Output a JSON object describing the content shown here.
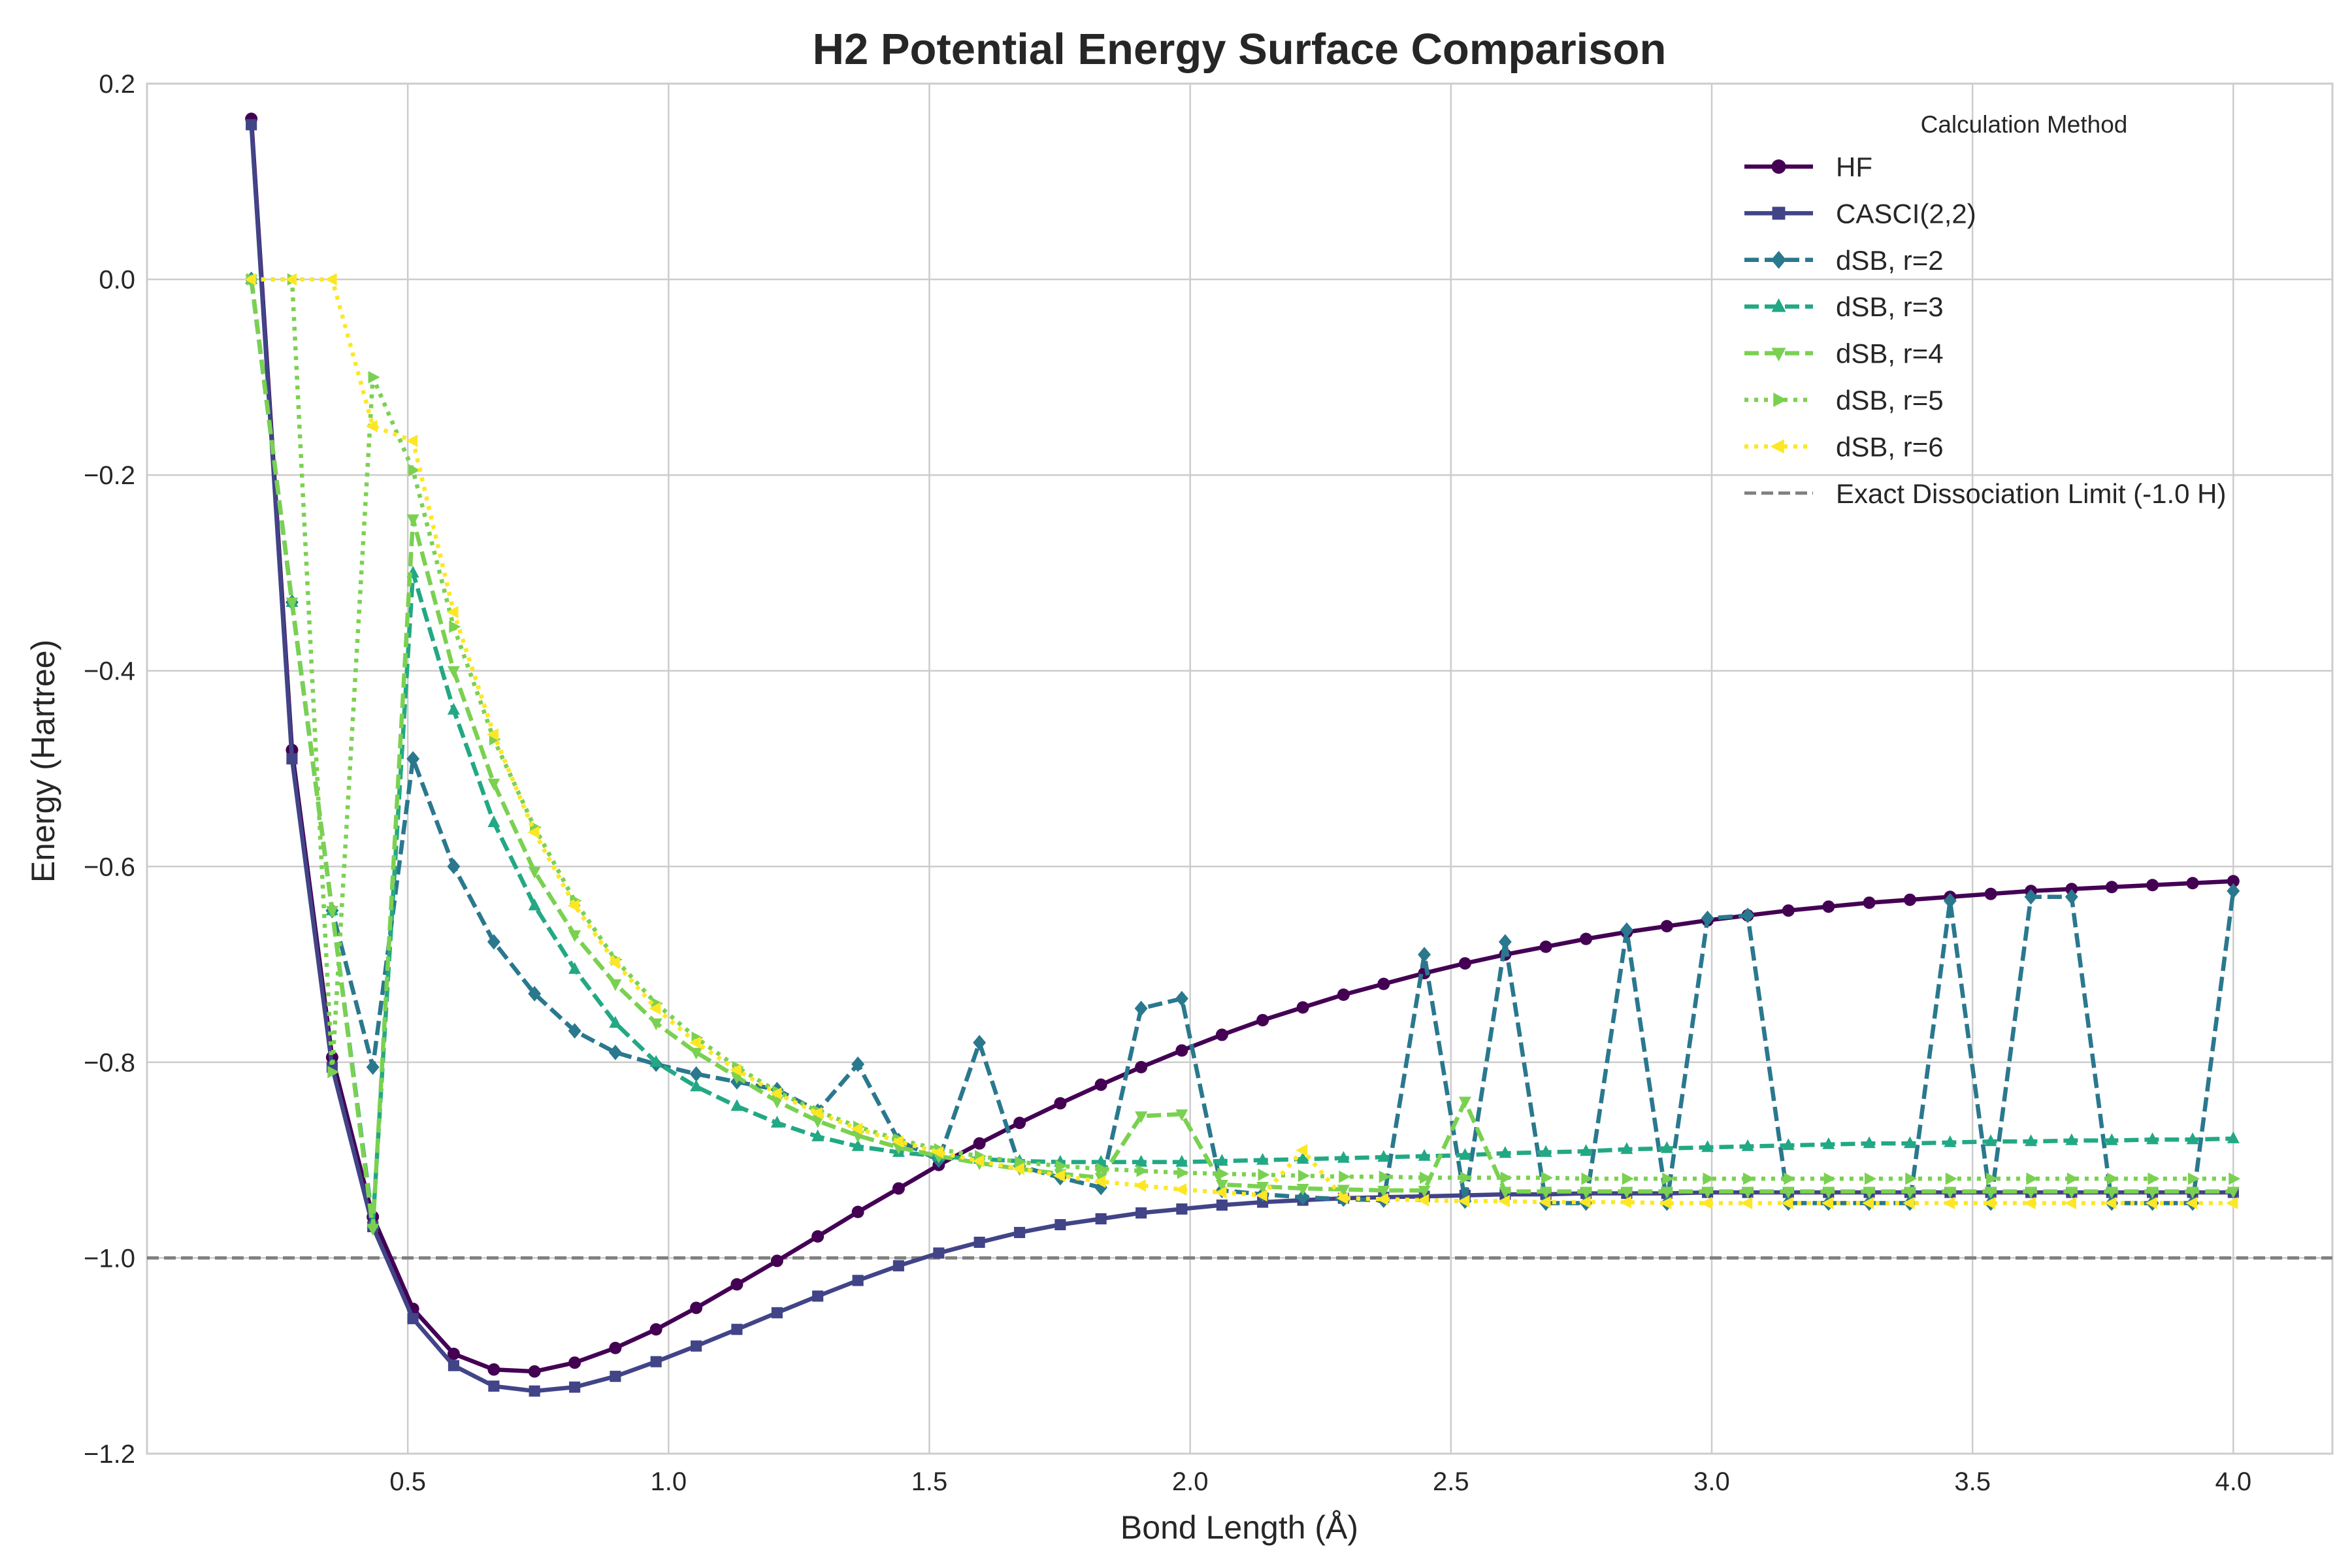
{
  "chart_data": {
    "type": "line",
    "title": "H2 Potential Energy Surface Comparison",
    "xlabel": "Bond Length (Å)",
    "ylabel": "Energy (Hartree)",
    "xlim": [
      0.2,
      4.0
    ],
    "ylim": [
      -1.2,
      0.2
    ],
    "x_ticks": [
      "0.5",
      "1.0",
      "1.5",
      "2.0",
      "2.5",
      "3.0",
      "3.5",
      "4.0"
    ],
    "y_ticks": [
      "0.2",
      "0.0",
      "−0.2",
      "−0.4",
      "−0.6",
      "−0.8",
      "−1.0",
      "−1.2"
    ],
    "grid": true,
    "legend_title": "Calculation Method",
    "legend_position": "top-right",
    "reference_line": {
      "label": "Exact Dissociation Limit (-1.0 H)",
      "y": -1.0,
      "color": "#808080"
    },
    "x": [
      0.2,
      0.278,
      0.355,
      0.433,
      0.51,
      0.588,
      0.665,
      0.743,
      0.82,
      0.898,
      0.976,
      1.053,
      1.131,
      1.208,
      1.286,
      1.363,
      1.441,
      1.518,
      1.596,
      1.673,
      1.751,
      1.829,
      1.906,
      1.984,
      2.061,
      2.139,
      2.216,
      2.294,
      2.371,
      2.449,
      2.527,
      2.604,
      2.682,
      2.759,
      2.837,
      2.914,
      2.992,
      3.069,
      3.147,
      3.224,
      3.302,
      3.38,
      3.457,
      3.535,
      3.612,
      3.69,
      3.767,
      3.845,
      3.922,
      4.0
    ],
    "series": [
      {
        "name": "HF",
        "color": "#440154",
        "marker": "circle",
        "dash": "solid",
        "values": [
          0.164,
          -0.481,
          -0.795,
          -0.958,
          -1.052,
          -1.098,
          -1.114,
          -1.116,
          -1.107,
          -1.092,
          -1.073,
          -1.051,
          -1.027,
          -1.003,
          -0.978,
          -0.953,
          -0.929,
          -0.905,
          -0.883,
          -0.862,
          -0.842,
          -0.823,
          -0.805,
          -0.788,
          -0.772,
          -0.757,
          -0.744,
          -0.731,
          -0.72,
          -0.709,
          -0.699,
          -0.69,
          -0.682,
          -0.674,
          -0.667,
          -0.661,
          -0.655,
          -0.65,
          -0.645,
          -0.641,
          -0.637,
          -0.634,
          -0.631,
          -0.628,
          -0.625,
          -0.623,
          -0.621,
          -0.619,
          -0.617,
          -0.615
        ]
      },
      {
        "name": "CASCI(2,2)",
        "color": "#414487",
        "marker": "square",
        "dash": "solid",
        "values": [
          0.158,
          -0.49,
          -0.805,
          -0.968,
          -1.062,
          -1.11,
          -1.131,
          -1.136,
          -1.132,
          -1.121,
          -1.106,
          -1.09,
          -1.073,
          -1.056,
          -1.039,
          -1.023,
          -1.008,
          -0.995,
          -0.984,
          -0.974,
          -0.966,
          -0.96,
          -0.954,
          -0.95,
          -0.946,
          -0.943,
          -0.941,
          -0.939,
          -0.938,
          -0.937,
          -0.936,
          -0.935,
          -0.935,
          -0.934,
          -0.934,
          -0.934,
          -0.933,
          -0.933,
          -0.933,
          -0.933,
          -0.933,
          -0.933,
          -0.933,
          -0.933,
          -0.933,
          -0.933,
          -0.933,
          -0.933,
          -0.933,
          -0.933
        ]
      },
      {
        "name": "dSB, r=2",
        "color": "#2a788e",
        "marker": "diamond",
        "dash": "dashed",
        "values": [
          0.0,
          -0.33,
          -0.645,
          -0.805,
          -0.49,
          -0.6,
          -0.677,
          -0.73,
          -0.768,
          -0.79,
          -0.802,
          -0.812,
          -0.82,
          -0.828,
          -0.85,
          -0.802,
          -0.88,
          -0.9,
          -0.78,
          -0.906,
          -0.918,
          -0.928,
          -0.745,
          -0.735,
          -0.931,
          -0.935,
          -0.938,
          -0.94,
          -0.941,
          -0.69,
          -0.942,
          -0.677,
          -0.944,
          -0.944,
          -0.665,
          -0.944,
          -0.653,
          -0.65,
          -0.944,
          -0.944,
          -0.944,
          -0.944,
          -0.635,
          -0.944,
          -0.631,
          -0.631,
          -0.944,
          -0.944,
          -0.944,
          -0.625
        ]
      },
      {
        "name": "dSB, r=3",
        "color": "#22a884",
        "marker": "triangle-up",
        "dash": "dashed",
        "values": [
          0.0,
          -0.33,
          -0.645,
          -0.965,
          -0.3,
          -0.44,
          -0.555,
          -0.64,
          -0.705,
          -0.76,
          -0.8,
          -0.825,
          -0.845,
          -0.862,
          -0.876,
          -0.886,
          -0.892,
          -0.896,
          -0.899,
          -0.901,
          -0.902,
          -0.902,
          -0.902,
          -0.902,
          -0.901,
          -0.9,
          -0.899,
          -0.898,
          -0.897,
          -0.896,
          -0.895,
          -0.893,
          -0.892,
          -0.891,
          -0.889,
          -0.888,
          -0.887,
          -0.886,
          -0.885,
          -0.884,
          -0.883,
          -0.883,
          -0.882,
          -0.881,
          -0.881,
          -0.88,
          -0.88,
          -0.879,
          -0.879,
          -0.878
        ]
      },
      {
        "name": "dSB, r=4",
        "color": "#7ad151",
        "marker": "triangle-down",
        "dash": "dashed",
        "values": [
          0.0,
          -0.33,
          -0.645,
          -0.97,
          -0.245,
          -0.4,
          -0.515,
          -0.605,
          -0.67,
          -0.72,
          -0.76,
          -0.79,
          -0.815,
          -0.84,
          -0.86,
          -0.875,
          -0.887,
          -0.896,
          -0.903,
          -0.909,
          -0.914,
          -0.918,
          -0.855,
          -0.853,
          -0.925,
          -0.927,
          -0.929,
          -0.93,
          -0.931,
          -0.931,
          -0.84,
          -0.932,
          -0.932,
          -0.932,
          -0.932,
          -0.932,
          -0.932,
          -0.932,
          -0.932,
          -0.932,
          -0.932,
          -0.932,
          -0.932,
          -0.932,
          -0.932,
          -0.932,
          -0.932,
          -0.932,
          -0.932,
          -0.932
        ]
      },
      {
        "name": "dSB, r=5",
        "color": "#7ad151",
        "marker": "triangle-right",
        "dash": "dotted",
        "values": [
          0.0,
          0.0,
          -0.81,
          -0.1,
          -0.195,
          -0.355,
          -0.47,
          -0.56,
          -0.635,
          -0.695,
          -0.74,
          -0.775,
          -0.805,
          -0.83,
          -0.85,
          -0.866,
          -0.879,
          -0.889,
          -0.896,
          -0.902,
          -0.906,
          -0.909,
          -0.911,
          -0.913,
          -0.914,
          -0.915,
          -0.916,
          -0.917,
          -0.917,
          -0.918,
          -0.918,
          -0.918,
          -0.918,
          -0.919,
          -0.919,
          -0.919,
          -0.919,
          -0.919,
          -0.919,
          -0.919,
          -0.919,
          -0.919,
          -0.919,
          -0.919,
          -0.919,
          -0.919,
          -0.919,
          -0.919,
          -0.919,
          -0.919
        ]
      },
      {
        "name": "dSB, r=6",
        "color": "#fde725",
        "marker": "triangle-left",
        "dash": "dotted",
        "values": [
          0.0,
          0.0,
          0.0,
          -0.15,
          -0.165,
          -0.34,
          -0.465,
          -0.565,
          -0.64,
          -0.698,
          -0.745,
          -0.78,
          -0.808,
          -0.832,
          -0.852,
          -0.868,
          -0.881,
          -0.892,
          -0.901,
          -0.909,
          -0.916,
          -0.922,
          -0.926,
          -0.93,
          -0.933,
          -0.936,
          -0.89,
          -0.939,
          -0.94,
          -0.941,
          -0.942,
          -0.942,
          -0.943,
          -0.943,
          -0.943,
          -0.944,
          -0.944,
          -0.944,
          -0.944,
          -0.944,
          -0.944,
          -0.944,
          -0.944,
          -0.944,
          -0.944,
          -0.944,
          -0.944,
          -0.944,
          -0.944,
          -0.944
        ]
      }
    ]
  }
}
